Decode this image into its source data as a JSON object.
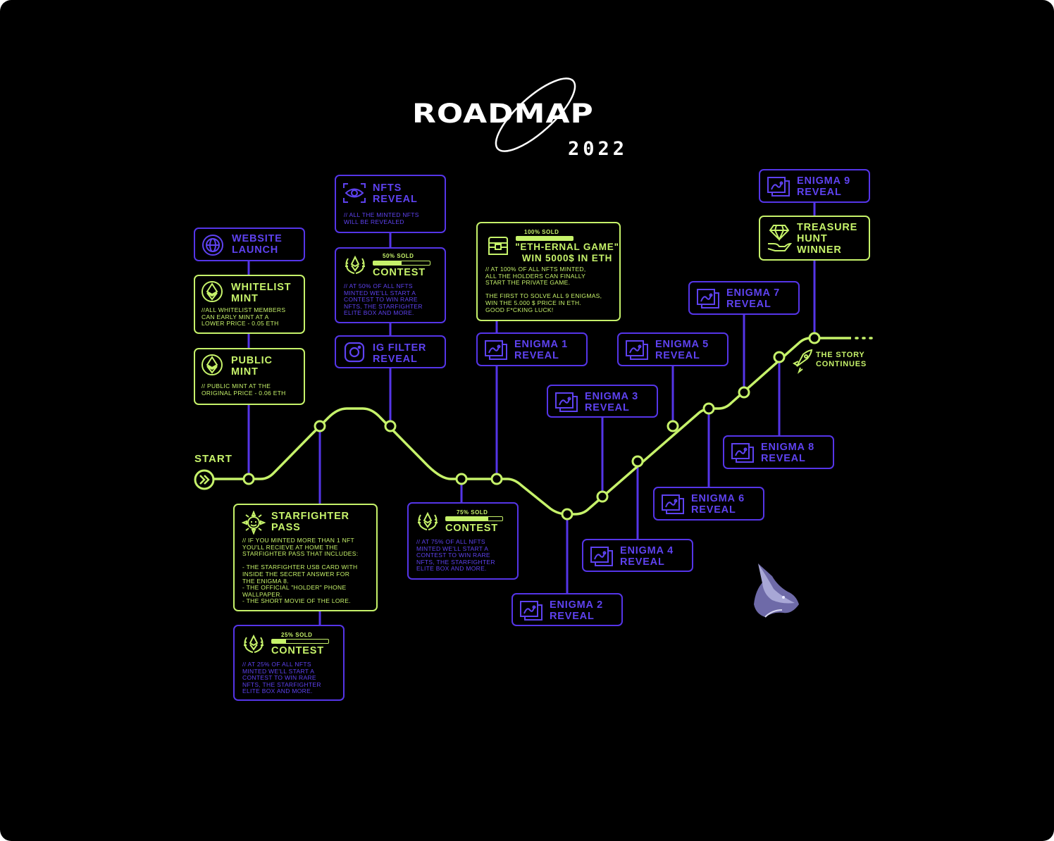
{
  "title": "ROADMAP",
  "year": "2022",
  "start_label": "START",
  "continues_label": "THE STORY\nCONTINUES",
  "colors": {
    "green": "#c6f26a",
    "purple": "#5535e8",
    "background": "#000000"
  },
  "cards": {
    "website": {
      "title": "WEBSITE\nLAUNCH",
      "icon": "globe-icon"
    },
    "whitelist": {
      "title": "WHITELIST\nMINT",
      "desc": "//ALL WHITELIST MEMBERS\nCAN EARLY MINT AT A\nLOWER PRICE - 0.05 ETH",
      "icon": "ethereum-icon"
    },
    "public": {
      "title": "PUBLIC\nMINT",
      "desc": "// PUBLIC MINT AT THE\nORIGINAL PRICE - 0.06 ETH",
      "icon": "ethereum-icon"
    },
    "nfts": {
      "title": "NFTS\nREVEAL",
      "desc": "// ALL THE MINTED NFTS\nWILL BE REVEALED",
      "icon": "eye-icon"
    },
    "contest50": {
      "sold": "50% SOLD",
      "progress": 0.5,
      "title": "CONTEST",
      "desc": "// AT 50% OF ALL NFTS\nMINTED WE'LL START A\nCONTEST TO WIN RARE\nNFTS, THE STARFIGHTER\nELITE BOX AND MORE.",
      "icon": "laurel-icon"
    },
    "igfilter": {
      "title": "IG FILTER\nREVEAL",
      "icon": "instagram-icon"
    },
    "eternal": {
      "sold": "100% SOLD",
      "progress": 1.0,
      "title": "\"ETH-ERNAL GAME\"\nWIN 5000$ IN ETH",
      "desc": "// AT 100% OF ALL NFTS MINTED,\nALL THE HOLDERS CAN FINALLY\nSTART THE PRIVATE GAME.\n\nTHE FIRST TO SOLVE ALL 9 ENIGMAS,\nWIN THE 5.000 $ PRICE IN ETH.\nGOOD F*CKING LUCK!",
      "icon": "treasure-chest-icon"
    },
    "starfighter": {
      "title": "STARFIGHTER\nPASS",
      "desc": "// IF YOU MINTED MORE THAN 1 NFT\nYOU'LL RECIEVE AT HOME THE\nSTARFIGHTER PASS THAT INCLUDES:\n\n- THE STARFIGHTER USB CARD WITH\n   INSIDE THE SECRET ANSWER FOR\n   THE ENIGMA 8.\n- THE OFFICIAL \"HOLDER\" PHONE\n   WALLPAPER.\n- THE SHORT MOVIE OF THE LORE.",
      "icon": "sun-face-icon"
    },
    "contest25": {
      "sold": "25% SOLD",
      "progress": 0.25,
      "title": "CONTEST",
      "desc": "// AT 25% OF ALL NFTS\nMINTED WE'LL START A\nCONTEST TO WIN RARE\nNFTS, THE STARFIGHTER\nELITE BOX AND MORE.",
      "icon": "laurel-icon"
    },
    "contest75": {
      "sold": "75% SOLD",
      "progress": 0.75,
      "title": "CONTEST",
      "desc": "// AT 75% OF ALL NFTS\nMINTED WE'LL START A\nCONTEST TO WIN RARE\nNFTS, THE STARFIGHTER\nELITE BOX AND MORE.",
      "icon": "laurel-icon"
    },
    "enigma1": {
      "title": "ENIGMA 1\nREVEAL",
      "icon": "treasure-map-icon"
    },
    "enigma2": {
      "title": "ENIGMA 2\nREVEAL",
      "icon": "treasure-map-icon"
    },
    "enigma3": {
      "title": "ENIGMA 3\nREVEAL",
      "icon": "treasure-map-icon"
    },
    "enigma4": {
      "title": "ENIGMA 4\nREVEAL",
      "icon": "treasure-map-icon"
    },
    "enigma5": {
      "title": "ENIGMA 5\nREVEAL",
      "icon": "treasure-map-icon"
    },
    "enigma6": {
      "title": "ENIGMA 6\nREVEAL",
      "icon": "treasure-map-icon"
    },
    "enigma7": {
      "title": "ENIGMA 7\nREVEAL",
      "icon": "treasure-map-icon"
    },
    "enigma8": {
      "title": "ENIGMA 8\nREVEAL",
      "icon": "treasure-map-icon"
    },
    "enigma9": {
      "title": "ENIGMA 9\nREVEAL",
      "icon": "treasure-map-icon"
    },
    "treasure": {
      "title": "TREASURE\nHUNT\nWINNER",
      "icon": "diamond-hand-icon"
    }
  }
}
